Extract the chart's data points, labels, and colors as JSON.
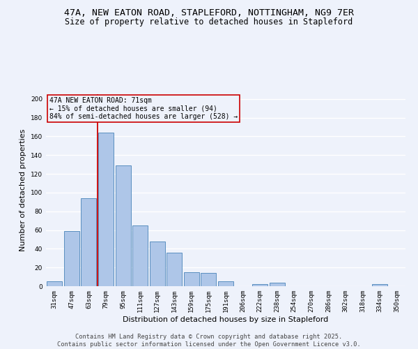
{
  "title_line1": "47A, NEW EATON ROAD, STAPLEFORD, NOTTINGHAM, NG9 7ER",
  "title_line2": "Size of property relative to detached houses in Stapleford",
  "xlabel": "Distribution of detached houses by size in Stapleford",
  "ylabel": "Number of detached properties",
  "categories": [
    "31sqm",
    "47sqm",
    "63sqm",
    "79sqm",
    "95sqm",
    "111sqm",
    "127sqm",
    "143sqm",
    "159sqm",
    "175sqm",
    "191sqm",
    "206sqm",
    "222sqm",
    "238sqm",
    "254sqm",
    "270sqm",
    "286sqm",
    "302sqm",
    "318sqm",
    "334sqm",
    "350sqm"
  ],
  "values": [
    5,
    59,
    94,
    164,
    129,
    65,
    48,
    36,
    15,
    14,
    5,
    0,
    2,
    4,
    0,
    0,
    0,
    0,
    0,
    2,
    0
  ],
  "bar_color": "#aec6e8",
  "bar_edge_color": "#5a8fc0",
  "vline_x_idx": 2,
  "vline_color": "#cc0000",
  "annotation_text": "47A NEW EATON ROAD: 71sqm\n← 15% of detached houses are smaller (94)\n84% of semi-detached houses are larger (528) →",
  "annotation_box_color": "#cc0000",
  "ylim": [
    0,
    205
  ],
  "yticks": [
    0,
    20,
    40,
    60,
    80,
    100,
    120,
    140,
    160,
    180,
    200
  ],
  "background_color": "#eef2fb",
  "grid_color": "#ffffff",
  "footer_line1": "Contains HM Land Registry data © Crown copyright and database right 2025.",
  "footer_line2": "Contains public sector information licensed under the Open Government Licence v3.0.",
  "title_fontsize": 9.5,
  "subtitle_fontsize": 8.5,
  "axis_label_fontsize": 8,
  "tick_fontsize": 6.5,
  "annotation_fontsize": 7,
  "footer_fontsize": 6.2
}
